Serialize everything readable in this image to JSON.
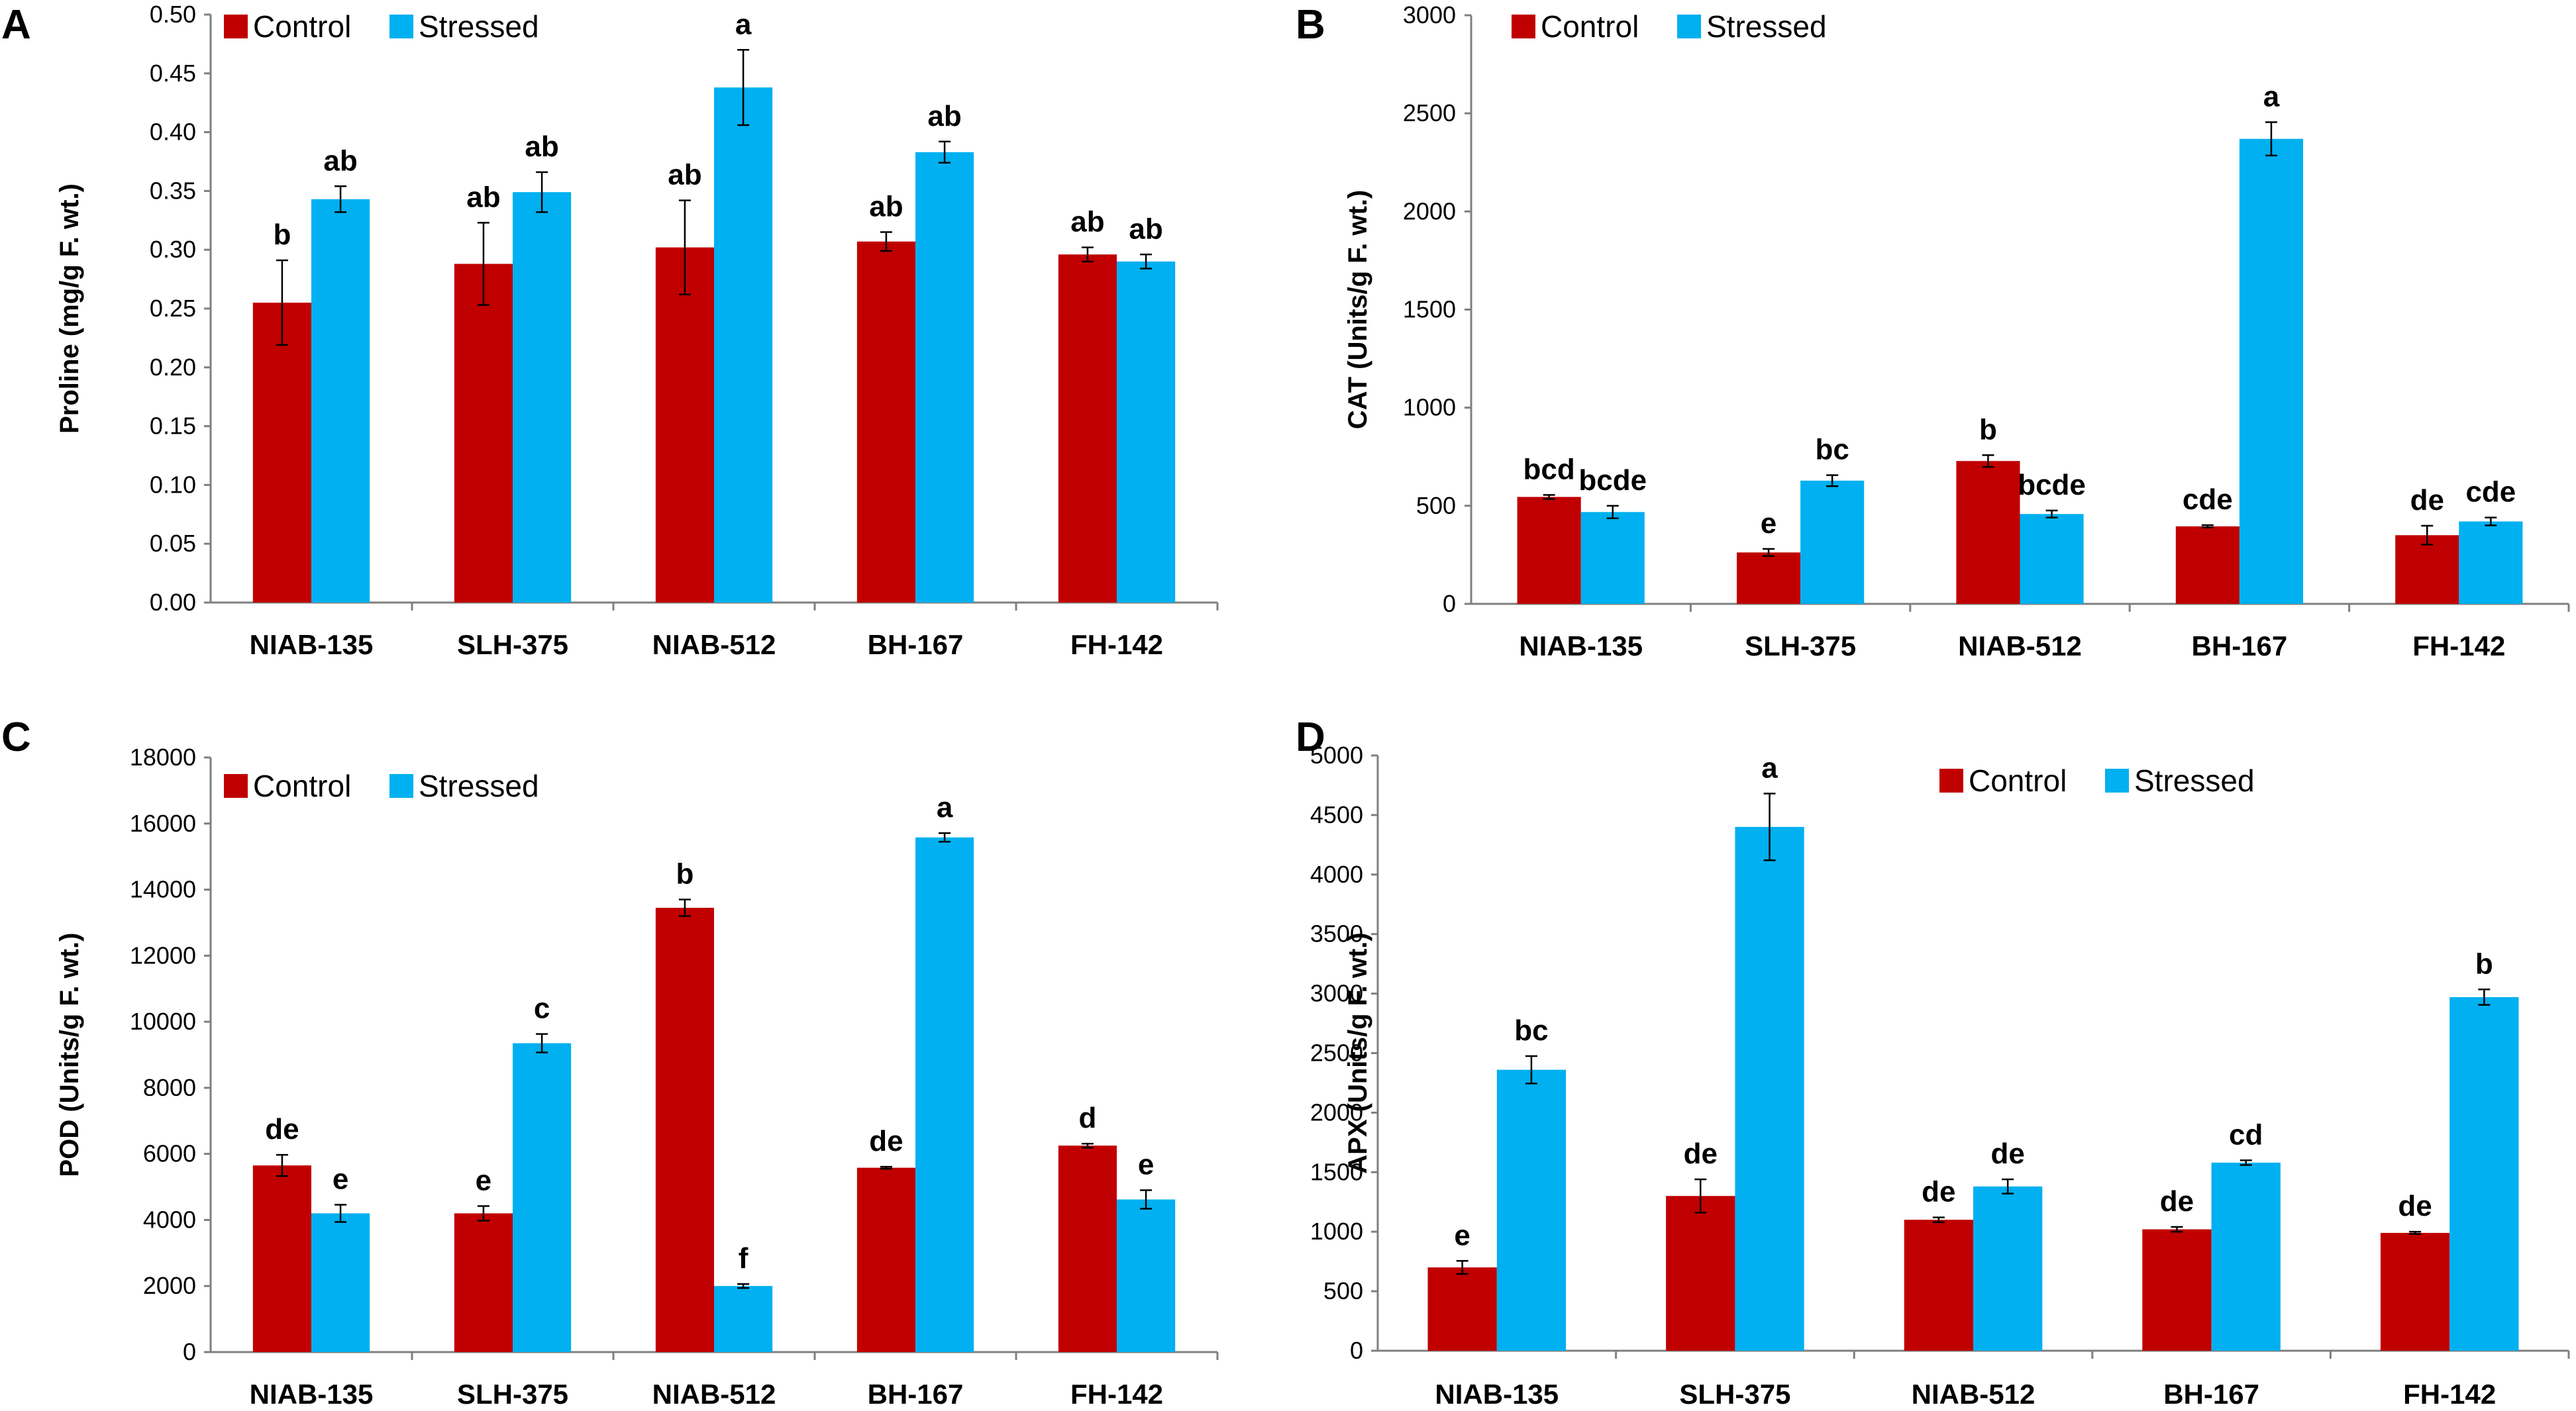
{
  "colors": {
    "control": "#C00000",
    "stressed": "#00B0F0",
    "axis": "#7f7f7f"
  },
  "chart_data": [
    {
      "type": "bar",
      "panel": "A",
      "ylabel": "Proline (mg/g F. wt.)",
      "categories": [
        "NIAB-135",
        "SLH-375",
        "NIAB-512",
        "BH-167",
        "FH-142"
      ],
      "ylim": [
        0,
        0.5
      ],
      "yticks": [
        "0.00",
        "0.05",
        "0.10",
        "0.15",
        "0.20",
        "0.25",
        "0.30",
        "0.35",
        "0.40",
        "0.45",
        "0.50"
      ],
      "legend_position": "top-left",
      "series": [
        {
          "name": "Control",
          "values": [
            0.255,
            0.288,
            0.302,
            0.307,
            0.296
          ],
          "errors": [
            0.036,
            0.035,
            0.04,
            0.008,
            0.006
          ],
          "labels": [
            "b",
            "ab",
            "ab",
            "ab",
            "ab"
          ]
        },
        {
          "name": "Stressed",
          "values": [
            0.343,
            0.349,
            0.438,
            0.383,
            0.29
          ],
          "errors": [
            0.011,
            0.017,
            0.032,
            0.009,
            0.006
          ],
          "labels": [
            "ab",
            "ab",
            "a",
            "ab",
            "ab"
          ]
        }
      ]
    },
    {
      "type": "bar",
      "panel": "B",
      "ylabel": "CAT (Units/g F. wt.)",
      "categories": [
        "NIAB-135",
        "SLH-375",
        "NIAB-512",
        "BH-167",
        "FH-142"
      ],
      "ylim": [
        0,
        3000
      ],
      "yticks": [
        "0",
        "500",
        "1000",
        "1500",
        "2000",
        "2500",
        "3000"
      ],
      "legend_position": "top-left",
      "series": [
        {
          "name": "Control",
          "values": [
            545,
            262,
            728,
            395,
            350
          ],
          "errors": [
            10,
            18,
            30,
            6,
            48
          ],
          "labels": [
            "bcd",
            "e",
            "b",
            "cde",
            "de"
          ]
        },
        {
          "name": "Stressed",
          "values": [
            468,
            628,
            458,
            2370,
            420
          ],
          "errors": [
            32,
            28,
            18,
            85,
            20
          ],
          "labels": [
            "bcde",
            "bc",
            "bcde",
            "a",
            "cde"
          ]
        }
      ]
    },
    {
      "type": "bar",
      "panel": "C",
      "ylabel": "POD (Units/g F. wt.)",
      "categories": [
        "NIAB-135",
        "SLH-375",
        "NIAB-512",
        "BH-167",
        "FH-142"
      ],
      "ylim": [
        0,
        18000
      ],
      "yticks": [
        "0",
        "2000",
        "4000",
        "6000",
        "8000",
        "10000",
        "12000",
        "14000",
        "16000",
        "18000"
      ],
      "legend_position": "top-left",
      "series": [
        {
          "name": "Control",
          "values": [
            5650,
            4200,
            13450,
            5580,
            6250
          ],
          "errors": [
            320,
            220,
            250,
            30,
            60
          ],
          "labels": [
            "de",
            "e",
            "b",
            "de",
            "d"
          ]
        },
        {
          "name": "Stressed",
          "values": [
            4200,
            9350,
            2000,
            15580,
            4620
          ],
          "errors": [
            260,
            280,
            60,
            130,
            280
          ],
          "labels": [
            "e",
            "c",
            "f",
            "a",
            "e"
          ]
        }
      ]
    },
    {
      "type": "bar",
      "panel": "D",
      "ylabel": "APX (Units/g F. wt.)",
      "categories": [
        "NIAB-135",
        "SLH-375",
        "NIAB-512",
        "BH-167",
        "FH-142"
      ],
      "ylim": [
        0,
        5000
      ],
      "yticks": [
        "0",
        "500",
        "1000",
        "1500",
        "2000",
        "2500",
        "3000",
        "3500",
        "4000",
        "4500",
        "5000"
      ],
      "legend_position": "top-center",
      "series": [
        {
          "name": "Control",
          "values": [
            700,
            1300,
            1100,
            1020,
            990
          ],
          "errors": [
            55,
            140,
            20,
            20,
            10
          ],
          "labels": [
            "e",
            "de",
            "de",
            "de",
            "de"
          ]
        },
        {
          "name": "Stressed",
          "values": [
            2360,
            4400,
            1380,
            1580,
            2970
          ],
          "errors": [
            115,
            280,
            60,
            20,
            65
          ],
          "labels": [
            "bc",
            "a",
            "de",
            "cd",
            "b"
          ]
        }
      ]
    }
  ]
}
